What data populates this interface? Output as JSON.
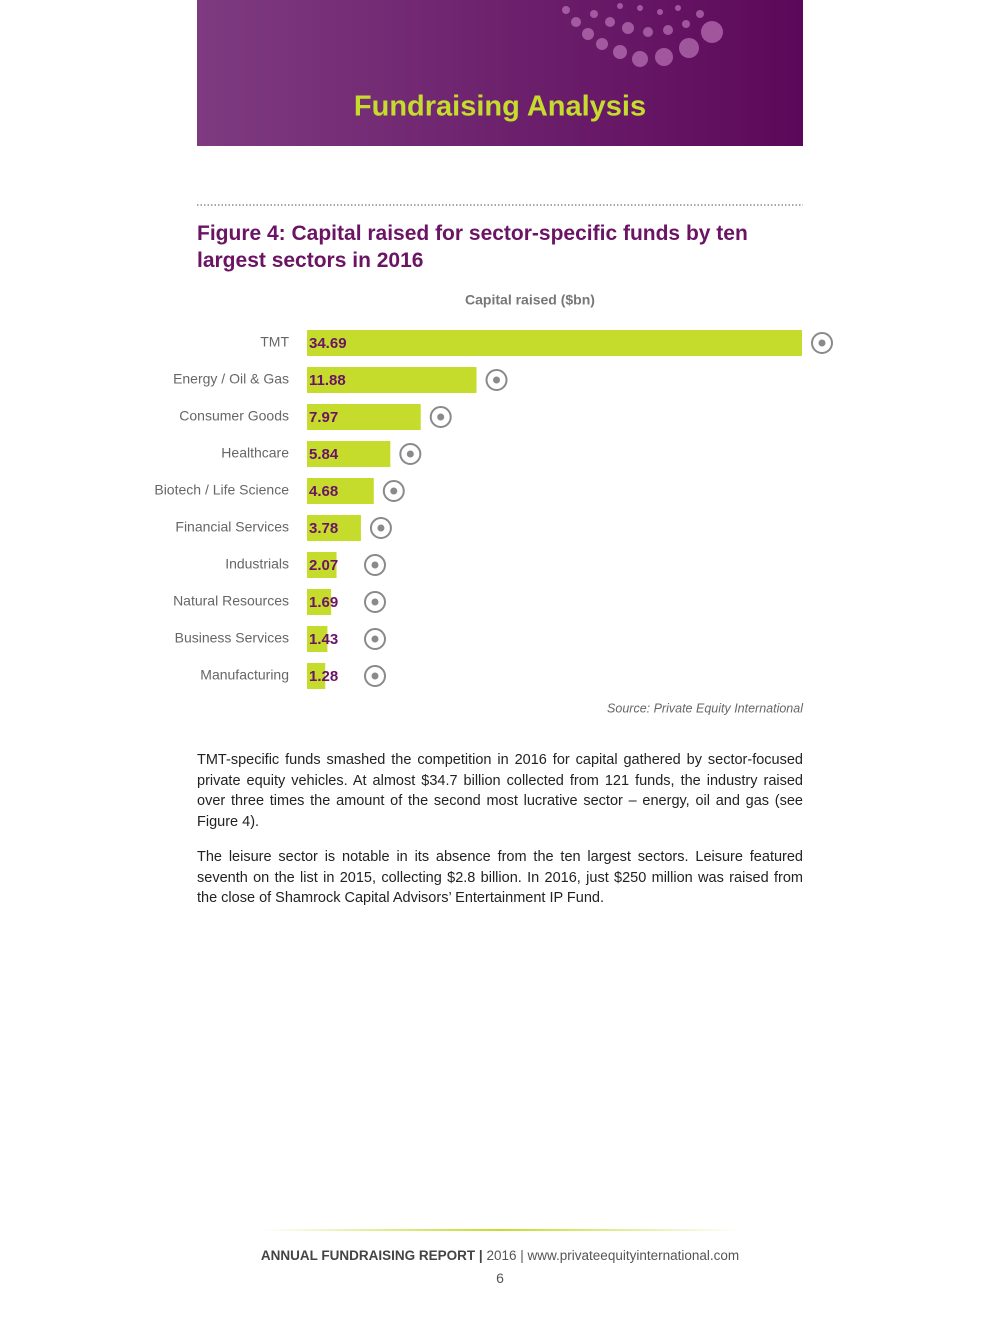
{
  "header": {
    "title": "Fundraising Analysis"
  },
  "chart_data": {
    "type": "bar",
    "orientation": "horizontal",
    "title": "Figure 4: Capital raised for sector-specific funds by ten largest sectors in 2016",
    "axis_label": "Capital raised ($bn)",
    "categories": [
      "TMT",
      "Energy / Oil & Gas",
      "Consumer Goods",
      "Healthcare",
      "Biotech / Life Science",
      "Financial Services",
      "Industrials",
      "Natural Resources",
      "Business Services",
      "Manufacturing"
    ],
    "values": [
      34.69,
      11.88,
      7.97,
      5.84,
      4.68,
      3.78,
      2.07,
      1.69,
      1.43,
      1.28
    ],
    "color": "#c5dc2d",
    "label_color": "#6b1464",
    "source": "Source: Private Equity International"
  },
  "paragraphs": [
    "TMT-specific funds smashed the competition in 2016 for capital gathered by sector-focused private equity vehicles. At almost $34.7 billion collected from 121 funds, the industry raised over three times the amount of the second most lucrative sector – energy, oil and gas (see Figure 4).",
    "The leisure sector is notable in its absence from the ten largest sectors. Leisure featured seventh on the list in 2015, collecting $2.8 billion. In 2016, just $250 million was raised from the close of Shamrock Capital Advisors’ Entertainment IP Fund."
  ],
  "footer": {
    "report": "ANNUAL FUNDRAISING REPORT",
    "separator": "|",
    "year": "2016",
    "url": "www.privateequityinternational.com",
    "page": "6"
  }
}
